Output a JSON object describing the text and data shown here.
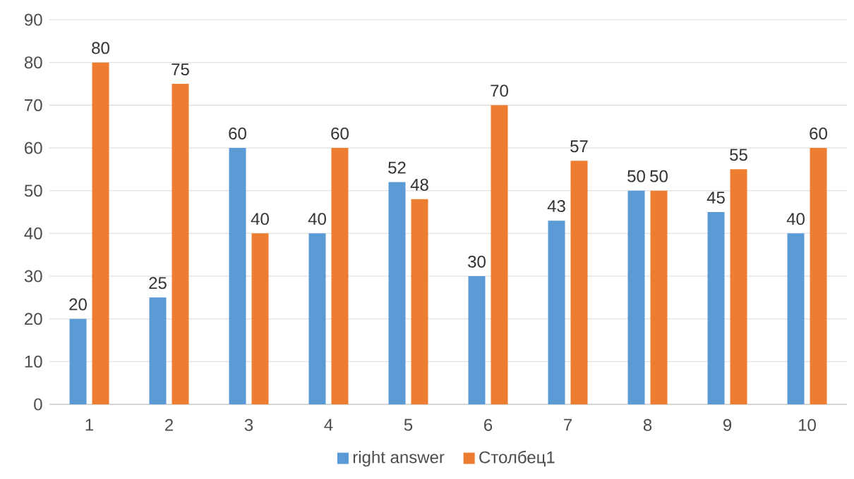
{
  "chart_data": {
    "type": "bar",
    "categories": [
      "1",
      "2",
      "3",
      "4",
      "5",
      "6",
      "7",
      "8",
      "9",
      "10"
    ],
    "series": [
      {
        "name": "right answer",
        "color": "#5b9bd5",
        "values": [
          20,
          25,
          60,
          40,
          52,
          30,
          43,
          50,
          45,
          40
        ]
      },
      {
        "name": "Столбец1",
        "color": "#ed7d31",
        "values": [
          80,
          75,
          40,
          60,
          48,
          70,
          57,
          50,
          55,
          60
        ]
      }
    ],
    "ylim": [
      0,
      90
    ],
    "yticks": [
      0,
      10,
      20,
      30,
      40,
      50,
      60,
      70,
      80,
      90
    ],
    "grid": "y",
    "legend": "bottom",
    "data_labels": true
  }
}
